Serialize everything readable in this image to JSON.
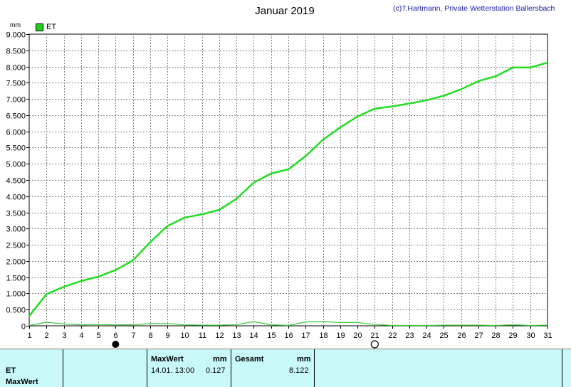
{
  "title": "Januar 2019",
  "copyright": "(c)T.Hartmann, Private Wetterstation Ballersbach",
  "unit": "mm",
  "legend": {
    "label": "ET"
  },
  "colors": {
    "main_line": "#22dd22",
    "max_line": "#33cc33",
    "grid": "#808080"
  },
  "chart_data": {
    "type": "line",
    "title": "Januar 2019",
    "ylabel": "mm",
    "ylim": [
      0,
      9
    ],
    "y_ticks": [
      "0",
      "0.500",
      "1.000",
      "1.500",
      "2.000",
      "2.500",
      "3.000",
      "3.500",
      "4.000",
      "4.500",
      "5.000",
      "5.500",
      "6.000",
      "6.500",
      "7.000",
      "7.500",
      "8.000",
      "8.500",
      "9.000"
    ],
    "x": [
      1,
      2,
      3,
      4,
      5,
      6,
      7,
      8,
      9,
      10,
      11,
      12,
      13,
      14,
      15,
      16,
      17,
      18,
      19,
      20,
      21,
      22,
      23,
      24,
      25,
      26,
      27,
      28,
      29,
      30,
      31
    ],
    "grid": true,
    "legend_position": "top-left",
    "series": [
      {
        "name": "ET",
        "values": [
          0.3,
          0.98,
          1.2,
          1.38,
          1.52,
          1.72,
          2.02,
          2.58,
          3.08,
          3.34,
          3.44,
          3.58,
          3.92,
          4.42,
          4.7,
          4.83,
          5.24,
          5.74,
          6.12,
          6.46,
          6.7,
          6.77,
          6.86,
          6.96,
          7.1,
          7.3,
          7.55,
          7.7,
          7.97,
          7.97,
          8.12
        ]
      },
      {
        "values": [
          0.01,
          0.11,
          0.06,
          0.03,
          0.04,
          0.03,
          0.03,
          0.07,
          0.07,
          0.03,
          0.02,
          0.02,
          0.04,
          0.13,
          0.03,
          0.01,
          0.12,
          0.13,
          0.1,
          0.1,
          0.04,
          0.01,
          0.01,
          0.01,
          0.02,
          0.02,
          0.02,
          0.01,
          0.03,
          0.01,
          0.02
        ]
      }
    ],
    "moon_markers": [
      {
        "day": 6,
        "phase": "new-moon"
      },
      {
        "day": 21,
        "phase": "full-moon"
      }
    ]
  },
  "table": {
    "row_labels": [
      "ET",
      "MaxWert"
    ],
    "maxwert": {
      "header": "MaxWert",
      "unit": "mm",
      "datetime": "14.01.  13:00",
      "value": "0.127"
    },
    "gesamt": {
      "header": "Gesamt",
      "unit": "mm",
      "value": "8.122"
    }
  }
}
